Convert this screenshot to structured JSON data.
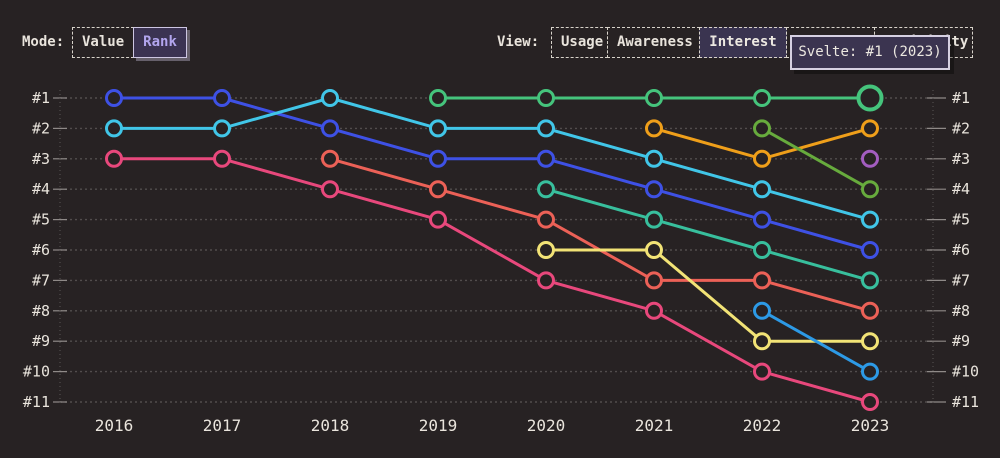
{
  "controls": {
    "mode": {
      "label": "Mode:",
      "options": [
        {
          "label": "Value",
          "selected": false
        },
        {
          "label": "Rank",
          "selected": true
        }
      ]
    },
    "view": {
      "label": "View:",
      "options": [
        {
          "label": "Usage",
          "selected": false
        },
        {
          "label": "Awareness",
          "selected": false
        },
        {
          "label": "Interest",
          "selected": true
        },
        {
          "label": "",
          "selected": false,
          "obscured_by_tooltip": true
        },
        {
          "label": "Positivity",
          "selected": false,
          "visible_text": "ty",
          "partially_obscured_by_tooltip": true
        }
      ]
    }
  },
  "tooltip": {
    "text": "Svelte: #1 (2023)"
  },
  "colors": {
    "background": "#272223",
    "text": "#e9e4dc",
    "gridline": "#524d4d",
    "tick": "#8f8a88",
    "selected_fill": "#3a3450",
    "selected_text": "#b2a5ee",
    "tooltip_border": "#d6d0e2"
  },
  "chart_data": {
    "type": "line",
    "variant": "bump-rank-chart",
    "x": [
      2016,
      2017,
      2018,
      2019,
      2020,
      2021,
      2022,
      2023
    ],
    "x_labels": [
      "2016",
      "2017",
      "2018",
      "2019",
      "2020",
      "2021",
      "2022",
      "2023"
    ],
    "y_rank_labels": [
      "#1",
      "#2",
      "#3",
      "#4",
      "#5",
      "#6",
      "#7",
      "#8",
      "#9",
      "#10",
      "#11"
    ],
    "y_inverted": true,
    "grid": "dotted-horizontal",
    "series": [
      {
        "name": "pink-series",
        "color": "#e8487c",
        "points": [
          [
            2016,
            3
          ],
          [
            2017,
            3
          ],
          [
            2018,
            4
          ],
          [
            2019,
            5
          ],
          [
            2020,
            7
          ],
          [
            2021,
            8
          ],
          [
            2022,
            10
          ],
          [
            2023,
            11
          ]
        ]
      },
      {
        "name": "indigo-series",
        "color": "#3e51e5",
        "points": [
          [
            2016,
            1
          ],
          [
            2017,
            1
          ],
          [
            2018,
            2
          ],
          [
            2019,
            3
          ],
          [
            2020,
            3
          ],
          [
            2021,
            4
          ],
          [
            2022,
            5
          ],
          [
            2023,
            6
          ]
        ]
      },
      {
        "name": "cyan-series",
        "color": "#41c6e8",
        "points": [
          [
            2016,
            2
          ],
          [
            2017,
            2
          ],
          [
            2018,
            1
          ],
          [
            2019,
            2
          ],
          [
            2020,
            2
          ],
          [
            2021,
            3
          ],
          [
            2022,
            4
          ],
          [
            2023,
            5
          ]
        ]
      },
      {
        "name": "salmon-series",
        "color": "#ec6157",
        "points": [
          [
            2018,
            3
          ],
          [
            2019,
            4
          ],
          [
            2020,
            5
          ],
          [
            2021,
            7
          ],
          [
            2022,
            7
          ],
          [
            2023,
            8
          ]
        ]
      },
      {
        "name": "teal-series",
        "color": "#38bf9d",
        "points": [
          [
            2020,
            4
          ],
          [
            2021,
            5
          ],
          [
            2022,
            6
          ],
          [
            2023,
            7
          ]
        ]
      },
      {
        "name": "yellow-series",
        "color": "#f2e376",
        "points": [
          [
            2020,
            6
          ],
          [
            2021,
            6
          ],
          [
            2022,
            9
          ],
          [
            2023,
            9
          ]
        ]
      },
      {
        "name": "azure-series",
        "color": "#2d9ae6",
        "points": [
          [
            2022,
            8
          ],
          [
            2023,
            10
          ]
        ]
      },
      {
        "name": "orange-series",
        "color": "#ef9f1a",
        "points": [
          [
            2021,
            2
          ],
          [
            2022,
            3
          ],
          [
            2023,
            2
          ]
        ]
      },
      {
        "name": "lime-series",
        "color": "#67ab3d",
        "points": [
          [
            2022,
            2
          ],
          [
            2023,
            4
          ]
        ]
      },
      {
        "name": "purple-series",
        "color": "#a35dc0",
        "points": [
          [
            2023,
            3
          ]
        ]
      },
      {
        "name": "Svelte",
        "color": "#45c47c",
        "points": [
          [
            2019,
            1
          ],
          [
            2020,
            1
          ],
          [
            2021,
            1
          ],
          [
            2022,
            1
          ],
          [
            2023,
            1
          ]
        ],
        "highlight_point": [
          2023,
          1
        ]
      }
    ]
  }
}
